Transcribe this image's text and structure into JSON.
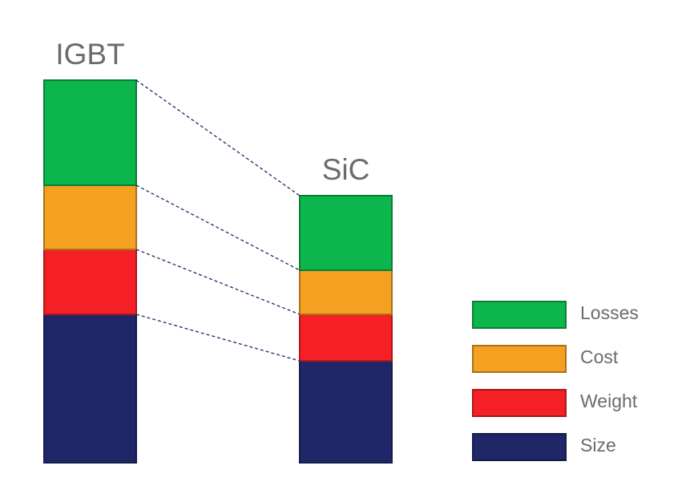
{
  "chart_data": {
    "type": "stacked-bar",
    "categories": [
      "IGBT",
      "SiC"
    ],
    "series": [
      {
        "name": "Size",
        "color": "#1f2768",
        "values": [
          185,
          127
        ]
      },
      {
        "name": "Weight",
        "color": "#f42026",
        "values": [
          81,
          58
        ]
      },
      {
        "name": "Cost",
        "color": "#f4a021",
        "values": [
          80,
          55
        ]
      },
      {
        "name": "Losses",
        "color": "#0db54d",
        "values": [
          131,
          93
        ]
      }
    ],
    "ylim": [
      0,
      477
    ]
  }
}
